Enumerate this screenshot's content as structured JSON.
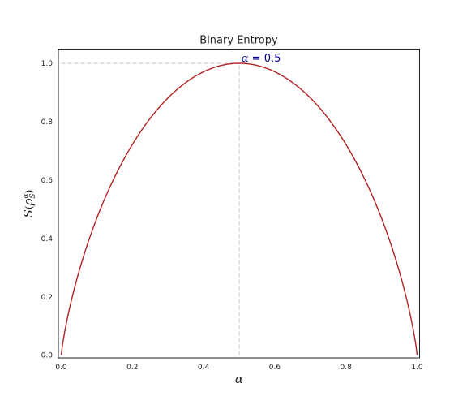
{
  "chart_data": {
    "type": "line",
    "title": "Binary Entropy",
    "xlabel": "α",
    "ylabel": "S(ρ_S^α)",
    "ylabel_main": "S",
    "ylabel_open": "(",
    "ylabel_rho": "ρ",
    "ylabel_sub": "S",
    "ylabel_sup": "α",
    "ylabel_close": ")",
    "xlim": [
      0.0,
      1.0
    ],
    "ylim": [
      0.0,
      1.0
    ],
    "xticks": [
      "0.0",
      "0.2",
      "0.4",
      "0.6",
      "0.8",
      "1.0"
    ],
    "yticks": [
      "0.0",
      "0.2",
      "0.4",
      "0.6",
      "0.8",
      "1.0"
    ],
    "grid": false,
    "function": "binary_entropy_base2",
    "series": [
      {
        "color": "#b22222",
        "x": [
          0.0,
          0.01,
          0.02,
          0.05,
          0.1,
          0.15,
          0.2,
          0.25,
          0.3,
          0.35,
          0.4,
          0.45,
          0.5,
          0.55,
          0.6,
          0.65,
          0.7,
          0.75,
          0.8,
          0.85,
          0.9,
          0.95,
          0.98,
          0.99,
          1.0
        ],
        "y": [
          0.0,
          0.081,
          0.141,
          0.286,
          0.469,
          0.61,
          0.722,
          0.811,
          0.881,
          0.934,
          0.971,
          0.993,
          1.0,
          0.993,
          0.971,
          0.934,
          0.881,
          0.811,
          0.722,
          0.61,
          0.469,
          0.286,
          0.141,
          0.081,
          0.0
        ]
      }
    ],
    "reference_lines": {
      "vertical_x": 0.5,
      "horizontal_y": 1.0,
      "color": "#cccccc",
      "style": "dashed"
    },
    "annotation": {
      "text": "α = 0.5",
      "text_var": "α",
      "text_rest": " = 0.5",
      "x": 0.52,
      "y": 1.0,
      "color": "#00008b"
    }
  }
}
